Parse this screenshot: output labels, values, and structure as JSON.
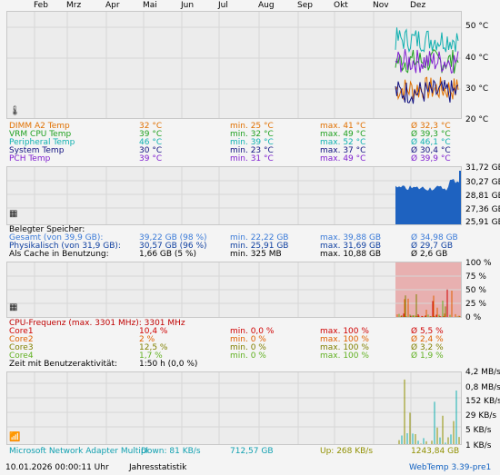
{
  "months": [
    "Feb",
    "Mrz",
    "Apr",
    "Mai",
    "Jun",
    "Jul",
    "Aug",
    "Sep",
    "Okt",
    "Nov",
    "Dez"
  ],
  "temp": {
    "axis": [
      "50 °C",
      "40 °C",
      "30 °C",
      "20 °C"
    ],
    "rows": [
      {
        "name": "DIMM A2 Temp",
        "cur": "32 °C",
        "min": "min. 25 °C",
        "max": "max. 41 °C",
        "avg": "Ø 32,3 °C",
        "color": "#e07000"
      },
      {
        "name": "VRM CPU Temp",
        "cur": "39 °C",
        "min": "min. 32 °C",
        "max": "max. 49 °C",
        "avg": "Ø 39,3 °C",
        "color": "#20a020"
      },
      {
        "name": "Peripheral Temp",
        "cur": "46 °C",
        "min": "min. 39 °C",
        "max": "max. 52 °C",
        "avg": "Ø 46,1 °C",
        "color": "#10b0b0"
      },
      {
        "name": "System Temp",
        "cur": "30 °C",
        "min": "min. 23 °C",
        "max": "max. 37 °C",
        "avg": "Ø 30,4 °C",
        "color": "#101080"
      },
      {
        "name": "PCH Temp",
        "cur": "39 °C",
        "min": "min. 31 °C",
        "max": "max. 49 °C",
        "avg": "Ø 39,9 °C",
        "color": "#8020d0"
      }
    ]
  },
  "mem": {
    "axis": [
      "31,72 GB",
      "30,27 GB",
      "28,81 GB",
      "27,36 GB",
      "25,91 GB"
    ],
    "header": "Belegter Speicher:",
    "rows": [
      {
        "name": "Gesamt (von 39,9 GB):",
        "cur": "39,22 GB (98 %)",
        "min": "min. 22,22 GB",
        "max": "max. 39,88 GB",
        "avg": "Ø 34,98 GB",
        "color": "#3a7ad8"
      },
      {
        "name": "Physikalisch (von 31,9 GB):",
        "cur": "30,57 GB (96 %)",
        "min": "min. 25,91 GB",
        "max": "max. 31,69 GB",
        "avg": "Ø 29,7 GB",
        "color": "#1040a0"
      },
      {
        "name": "Als Cache in Benutzung:",
        "cur": "1,66 GB (5 %)",
        "min": "min. 325 MB",
        "max": "max. 10,88 GB",
        "avg": "Ø 2,6 GB",
        "color": "#000000"
      }
    ]
  },
  "cpu": {
    "axis": [
      "100 %",
      "75 %",
      "50 %",
      "25 %",
      "0 %"
    ],
    "header": "CPU-Frequenz (max. 3301 MHz): 3301 MHz",
    "rows": [
      {
        "name": "Core1",
        "cur": "10,4 %",
        "min": "min. 0,0 %",
        "max": "max. 100 %",
        "avg": "Ø 5,5 %",
        "color": "#d00000"
      },
      {
        "name": "Core2",
        "cur": "2 %",
        "min": "min. 0 %",
        "max": "max. 100 %",
        "avg": "Ø 2,4 %",
        "color": "#e06000"
      },
      {
        "name": "Core3",
        "cur": "12,5 %",
        "min": "min. 0 %",
        "max": "max. 100 %",
        "avg": "Ø 3,2 %",
        "color": "#808000"
      },
      {
        "name": "Core4",
        "cur": "1,7 %",
        "min": "min. 0 %",
        "max": "max. 100 %",
        "avg": "Ø 1,9 %",
        "color": "#60b020"
      }
    ],
    "idle": {
      "label": "Zeit mit Benutzeraktivität:",
      "value": "1:50 h (0,0 %)"
    }
  },
  "net": {
    "axis": [
      "4,2 MB/s",
      "0,8 MB/s",
      "152 KB/s",
      "29 KB/s",
      "5 KB/s",
      "1 KB/s"
    ],
    "adapter": "Microsoft Network Adapter Multipl",
    "down": "Down: 81 KB/s",
    "down_total": "712,57 GB",
    "up": "Up: 268 KB/s",
    "up_total": "1243,84 GB"
  },
  "footer": {
    "datetime": "10.01.2026 00:00:11 Uhr",
    "title": "Jahresstatistik",
    "version": "WebTemp 3.39-pre1"
  },
  "colors": {
    "mem_fill": "#1e62c0",
    "cpu_bg": "#e8b0b0"
  }
}
